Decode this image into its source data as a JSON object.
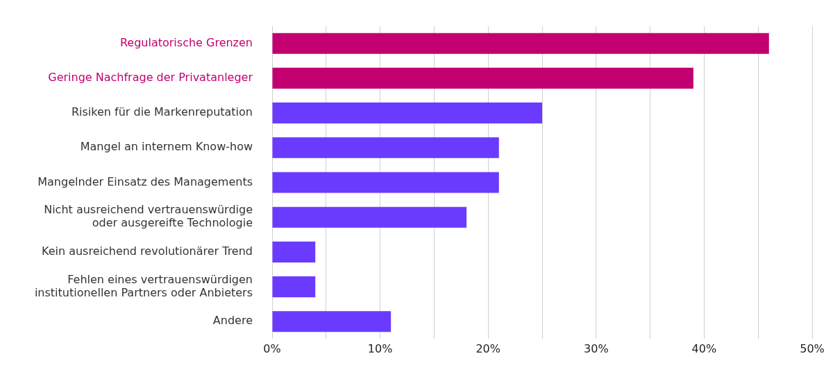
{
  "chart_data": {
    "type": "bar",
    "orientation": "horizontal",
    "categories": [
      "Regulatorische Grenzen",
      "Geringe Nachfrage der Privatanleger",
      "Risiken für die Markenreputation",
      "Mangel an internem Know-how",
      "Mangelnder Einsatz des Managements",
      "Nicht ausreichend vertrauenswürdige\noder ausgereifte Technologie",
      "Kein ausreichend revolutionärer Trend",
      "Fehlen eines vertrauenswürdigen\ninstitutionellen Partners oder Anbieters",
      "Andere"
    ],
    "values": [
      46,
      39,
      25,
      21,
      21,
      18,
      4,
      4,
      11
    ],
    "colors": [
      "#c2006f",
      "#c2006f",
      "#6a3bff",
      "#6a3bff",
      "#6a3bff",
      "#6a3bff",
      "#6a3bff",
      "#6a3bff",
      "#6a3bff"
    ],
    "xlim": [
      0,
      50
    ],
    "xticks": [
      {
        "value": 0,
        "label": "0%"
      },
      {
        "value": 5,
        "label": null
      },
      {
        "value": 10,
        "label": "10%"
      },
      {
        "value": 15,
        "label": null
      },
      {
        "value": 20,
        "label": "20%"
      },
      {
        "value": 25,
        "label": null
      },
      {
        "value": 30,
        "label": "30%"
      },
      {
        "value": 35,
        "label": null
      },
      {
        "value": 40,
        "label": "40%"
      },
      {
        "value": 45,
        "label": null
      },
      {
        "value": 50,
        "label": "50%"
      }
    ],
    "grid": "x",
    "legend": false
  }
}
